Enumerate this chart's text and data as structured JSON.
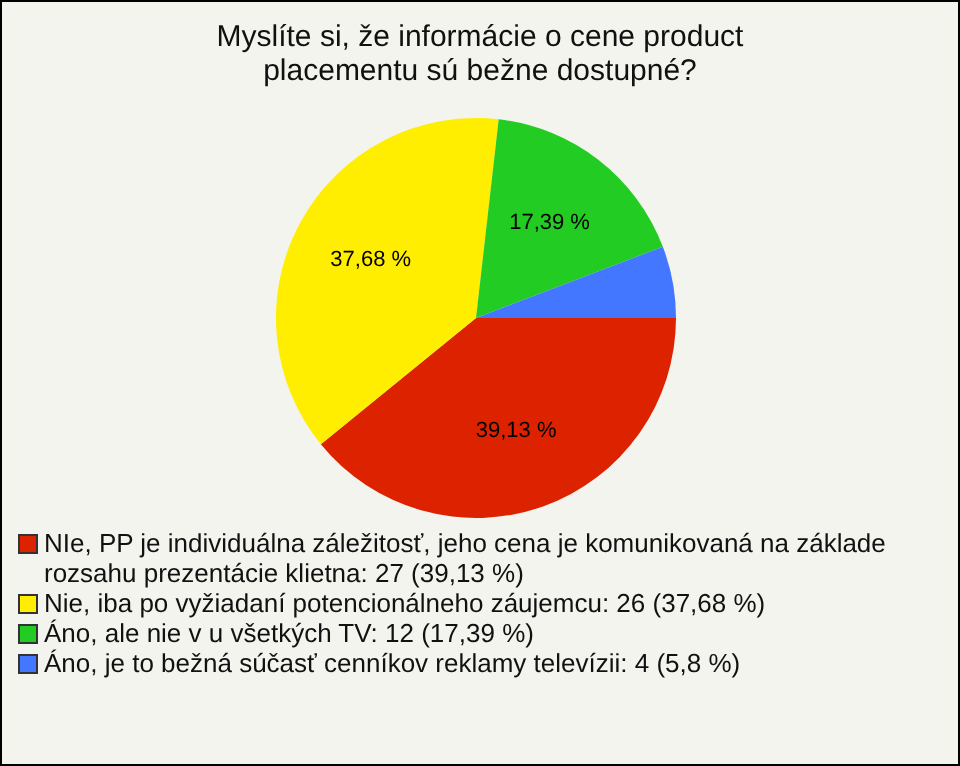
{
  "chart_data": {
    "type": "pie",
    "title": "Myslíte si, že informácie o cene product placementu sú bežne dostupné?",
    "categories": [
      "NIe, PP je individuálna záležitosť, jeho cena je komunikovaná na základe rozsahu prezentácie klietna: 27 (39,13 %)",
      "Nie, iba po vyžiadaní potencionálneho záujemcu: 26 (37,68 %)",
      "Áno, ale nie v u všetkých TV: 12 (17,39 %)",
      "Áno, je to bežná súčasť cenníkov reklamy televízii: 4 (5,8 %)"
    ],
    "values": [
      39.13,
      37.68,
      17.39,
      5.8
    ],
    "colors": [
      "#dd2200",
      "#ffee00",
      "#22cc22",
      "#4477ff"
    ],
    "value_labels": [
      "39,13 %",
      "37,68 %",
      "17,39 %",
      null
    ],
    "legend": "bottom"
  }
}
